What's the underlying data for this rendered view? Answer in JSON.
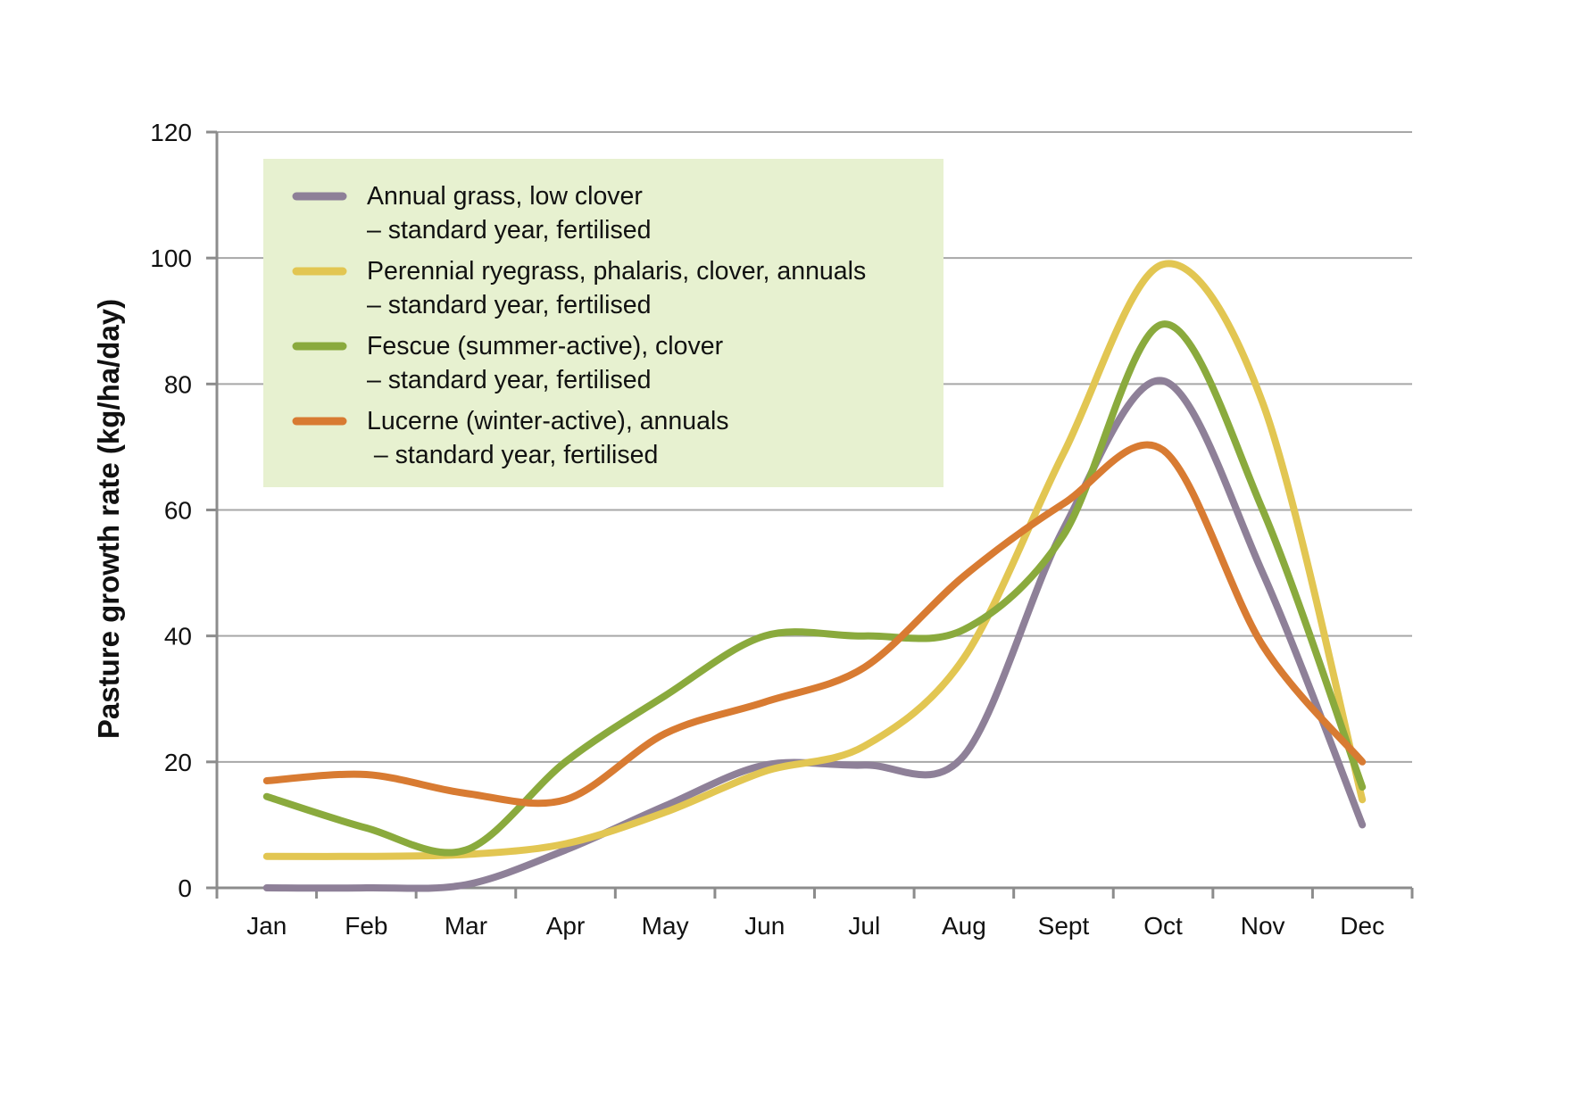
{
  "chart_data": {
    "type": "line",
    "title": "",
    "xlabel": "",
    "ylabel": "Pasture growth rate (kg/ha/day)",
    "ylim": [
      0,
      120
    ],
    "yticks": [
      0,
      20,
      40,
      60,
      80,
      100,
      120
    ],
    "grid": true,
    "legend_position": "top-left",
    "legend_background": "#e7f1d0",
    "categories": [
      "Jan",
      "Feb",
      "Mar",
      "Apr",
      "May",
      "Jun",
      "Jul",
      "Aug",
      "Sept",
      "Oct",
      "Nov",
      "Dec"
    ],
    "series": [
      {
        "name": "Annual grass, low clover",
        "name_line2": "– standard year, fertilised",
        "color": "#8e8098",
        "values": [
          0,
          0,
          0.5,
          6,
          13,
          19.5,
          19.5,
          21,
          57,
          80.5,
          50,
          10
        ]
      },
      {
        "name": "Perennial ryegrass, phalaris, clover, annuals",
        "name_line2": "– standard year, fertilised",
        "color": "#e2c652",
        "values": [
          5,
          5,
          5.3,
          7,
          12,
          18.5,
          22.5,
          36.5,
          69,
          99,
          77,
          14
        ]
      },
      {
        "name": "Fescue (summer-active), clover",
        "name_line2": "– standard year, fertilised",
        "color": "#8aaa3d",
        "values": [
          14.5,
          9.5,
          6,
          20,
          30.5,
          40,
          40,
          41,
          56,
          89.5,
          60,
          16
        ]
      },
      {
        "name": "Lucerne (winter-active), annuals",
        "name_line2": " – standard year, fertilised",
        "color": "#d87b32",
        "values": [
          17,
          18,
          15,
          14,
          24.5,
          29.5,
          35,
          49.5,
          61,
          69.5,
          38.5,
          20
        ]
      }
    ]
  }
}
